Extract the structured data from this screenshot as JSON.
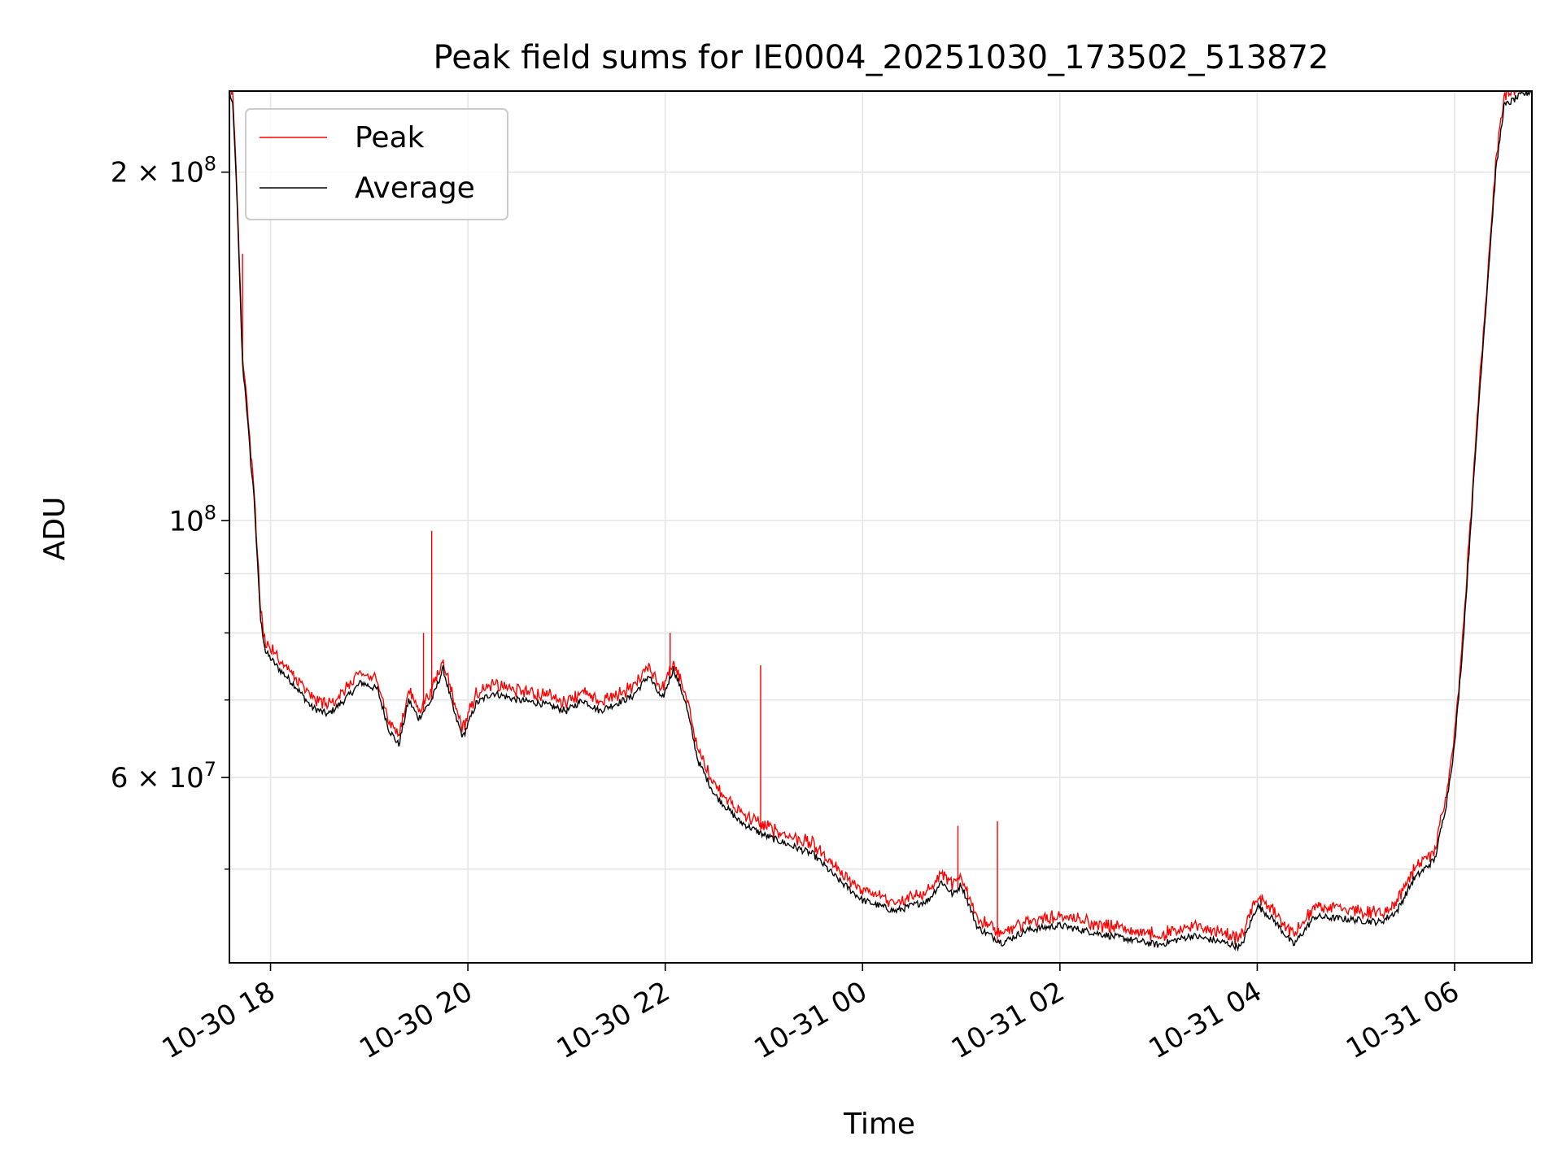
{
  "chart_data": {
    "type": "line",
    "title": "Peak field sums for IE0004_20251030_173502_513872",
    "xlabel": "Time",
    "ylabel": "ADU",
    "yscale": "log",
    "xlim": [
      "2025-10-30 17:35",
      "2025-10-31 06:47"
    ],
    "ylim": [
      41500000,
      235000000
    ],
    "grid": true,
    "legend_position": "upper-left",
    "x_ticks": [
      {
        "t": "2025-10-30 18:00",
        "label": "10-30 18"
      },
      {
        "t": "2025-10-30 20:00",
        "label": "10-30 20"
      },
      {
        "t": "2025-10-30 22:00",
        "label": "10-30 22"
      },
      {
        "t": "2025-10-31 00:00",
        "label": "10-31 00"
      },
      {
        "t": "2025-10-31 02:00",
        "label": "10-31 02"
      },
      {
        "t": "2025-10-31 04:00",
        "label": "10-31 04"
      },
      {
        "t": "2025-10-31 06:00",
        "label": "10-31 06"
      }
    ],
    "y_ticks_major": [
      {
        "v": 200000000,
        "base": "2 × 10",
        "exp": "8"
      },
      {
        "v": 100000000,
        "base": "10",
        "exp": "8"
      },
      {
        "v": 60000000,
        "base": "6 × 10",
        "exp": "7"
      }
    ],
    "y_ticks_minor": [
      50000000,
      70000000,
      80000000,
      90000000
    ],
    "series": [
      {
        "name": "Average",
        "color": "#000000",
        "points": [
          [
            "2025-10-30 17:35",
            235000000
          ],
          [
            "2025-10-30 17:37",
            228000000
          ],
          [
            "2025-10-30 17:39",
            200000000
          ],
          [
            "2025-10-30 17:41",
            165000000
          ],
          [
            "2025-10-30 17:43",
            136000000
          ],
          [
            "2025-10-30 17:45",
            128000000
          ],
          [
            "2025-10-30 17:48",
            112000000
          ],
          [
            "2025-10-30 17:50",
            105000000
          ],
          [
            "2025-10-30 17:52",
            92000000
          ],
          [
            "2025-10-30 17:54",
            82000000
          ],
          [
            "2025-10-30 17:57",
            77000000
          ],
          [
            "2025-10-30 18:05",
            74500000
          ],
          [
            "2025-10-30 18:15",
            72000000
          ],
          [
            "2025-10-30 18:25",
            69000000
          ],
          [
            "2025-10-30 18:35",
            68000000
          ],
          [
            "2025-10-30 18:45",
            70000000
          ],
          [
            "2025-10-30 18:55",
            72500000
          ],
          [
            "2025-10-30 19:05",
            71500000
          ],
          [
            "2025-10-30 19:12",
            66000000
          ],
          [
            "2025-10-30 19:18",
            64000000
          ],
          [
            "2025-10-30 19:24",
            70000000
          ],
          [
            "2025-10-30 19:30",
            67500000
          ],
          [
            "2025-10-30 19:38",
            70000000
          ],
          [
            "2025-10-30 19:45",
            74500000
          ],
          [
            "2025-10-30 19:52",
            68000000
          ],
          [
            "2025-10-30 19:57",
            65000000
          ],
          [
            "2025-10-30 20:05",
            69500000
          ],
          [
            "2025-10-30 20:15",
            71000000
          ],
          [
            "2025-10-30 20:30",
            70000000
          ],
          [
            "2025-10-30 20:45",
            69500000
          ],
          [
            "2025-10-30 21:00",
            68500000
          ],
          [
            "2025-10-30 21:10",
            70000000
          ],
          [
            "2025-10-30 21:20",
            68500000
          ],
          [
            "2025-10-30 21:30",
            69500000
          ],
          [
            "2025-10-30 21:40",
            70500000
          ],
          [
            "2025-10-30 21:50",
            73500000
          ],
          [
            "2025-10-30 21:58",
            70000000
          ],
          [
            "2025-10-30 22:05",
            74500000
          ],
          [
            "2025-10-30 22:12",
            70000000
          ],
          [
            "2025-10-30 22:20",
            62000000
          ],
          [
            "2025-10-30 22:30",
            58000000
          ],
          [
            "2025-10-30 22:45",
            55000000
          ],
          [
            "2025-10-30 23:00",
            53500000
          ],
          [
            "2025-10-30 23:15",
            52500000
          ],
          [
            "2025-10-30 23:30",
            51500000
          ],
          [
            "2025-10-30 23:45",
            49000000
          ],
          [
            "2025-10-31 00:00",
            47000000
          ],
          [
            "2025-10-31 00:20",
            46000000
          ],
          [
            "2025-10-31 00:40",
            47000000
          ],
          [
            "2025-10-31 00:48",
            48800000
          ],
          [
            "2025-10-31 00:55",
            47500000
          ],
          [
            "2025-10-31 01:00",
            48500000
          ],
          [
            "2025-10-31 01:10",
            44500000
          ],
          [
            "2025-10-31 01:25",
            43200000
          ],
          [
            "2025-10-31 01:40",
            44300000
          ],
          [
            "2025-10-31 02:00",
            44700000
          ],
          [
            "2025-10-31 02:30",
            43800000
          ],
          [
            "2025-10-31 03:00",
            43000000
          ],
          [
            "2025-10-31 03:20",
            43800000
          ],
          [
            "2025-10-31 03:40",
            43200000
          ],
          [
            "2025-10-31 03:50",
            42800000
          ],
          [
            "2025-10-31 04:00",
            46500000
          ],
          [
            "2025-10-31 04:10",
            45200000
          ],
          [
            "2025-10-31 04:22",
            43000000
          ],
          [
            "2025-10-31 04:35",
            45500000
          ],
          [
            "2025-10-31 05:00",
            45200000
          ],
          [
            "2025-10-31 05:15",
            45000000
          ],
          [
            "2025-10-31 05:25",
            46000000
          ],
          [
            "2025-10-31 05:35",
            49000000
          ],
          [
            "2025-10-31 05:48",
            51000000
          ],
          [
            "2025-10-31 05:55",
            57000000
          ],
          [
            "2025-10-31 06:00",
            64000000
          ],
          [
            "2025-10-31 06:05",
            78000000
          ],
          [
            "2025-10-31 06:10",
            100000000
          ],
          [
            "2025-10-31 06:15",
            128000000
          ],
          [
            "2025-10-31 06:20",
            160000000
          ],
          [
            "2025-10-31 06:25",
            200000000
          ],
          [
            "2025-10-31 06:30",
            228000000
          ],
          [
            "2025-10-31 06:40",
            233000000
          ],
          [
            "2025-10-31 06:47",
            235000000
          ]
        ]
      },
      {
        "name": "Peak",
        "color": "#ff0000",
        "spikes": [
          [
            "2025-10-30 17:43",
            170000000
          ],
          [
            "2025-10-30 19:33",
            80000000
          ],
          [
            "2025-10-30 19:38",
            98000000
          ],
          [
            "2025-10-30 22:03",
            80000000
          ],
          [
            "2025-10-30 22:58",
            75000000
          ],
          [
            "2025-10-31 00:58",
            54500000
          ],
          [
            "2025-10-31 01:22",
            55000000
          ]
        ]
      }
    ]
  }
}
